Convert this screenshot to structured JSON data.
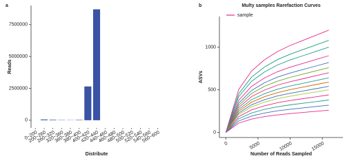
{
  "chart_data": [
    {
      "type": "bar",
      "panel_label": "a",
      "ylabel": "Reads",
      "xlabel": "Distribute",
      "categories": [
        "0~200",
        "200~260",
        "260~320",
        "320~360",
        "360~380",
        "380~400",
        "400~420",
        "420~440",
        "440~460",
        "460~480",
        "480~500",
        "500~520",
        "520~540",
        "540~560",
        "560~600"
      ],
      "values": [
        0,
        60000,
        40000,
        20000,
        15000,
        30000,
        2650000,
        8700000,
        0,
        0,
        0,
        0,
        0,
        0,
        0
      ],
      "color": "#3a53a4",
      "ylim": [
        -600000,
        9000000
      ],
      "yticks": [
        0,
        2500000,
        5000000,
        7500000
      ]
    },
    {
      "type": "line",
      "panel_label": "b",
      "title": "Multy samples Rarefaction Curves",
      "ylabel": "ASVs",
      "xlabel": "Number of Reads Sampled",
      "legend": {
        "label": "sample",
        "color": "#e7298a"
      },
      "x": [
        0,
        2000,
        4000,
        6000,
        8000,
        10000,
        12000,
        14000,
        16000
      ],
      "series": [
        {
          "color": "#e7298a",
          "values": [
            0,
            504,
            720,
            852,
            948,
            1020,
            1080,
            1140,
            1200
          ]
        },
        {
          "color": "#1b9e77",
          "values": [
            0,
            454,
            648,
            767,
            853,
            918,
            972,
            1026,
            1080
          ]
        },
        {
          "color": "#1f9e89",
          "values": [
            0,
            420,
            600,
            710,
            790,
            850,
            900,
            950,
            1000
          ]
        },
        {
          "color": "#e7298a",
          "values": [
            0,
            378,
            540,
            639,
            711,
            765,
            810,
            855,
            900
          ]
        },
        {
          "color": "#3b6fb6",
          "values": [
            0,
            344,
            492,
            582,
            648,
            697,
            738,
            779,
            820
          ]
        },
        {
          "color": "#66a61e",
          "values": [
            0,
            319,
            456,
            540,
            600,
            646,
            684,
            722,
            760
          ]
        },
        {
          "color": "#e7298a",
          "values": [
            0,
            294,
            420,
            497,
            553,
            595,
            630,
            665,
            700
          ]
        },
        {
          "color": "#1f9e89",
          "values": [
            0,
            269,
            384,
            454,
            506,
            544,
            576,
            608,
            640
          ]
        },
        {
          "color": "#d95f02",
          "values": [
            0,
            248,
            354,
            419,
            466,
            502,
            531,
            561,
            590
          ]
        },
        {
          "color": "#3b6fb6",
          "values": [
            0,
            227,
            324,
            383,
            427,
            459,
            486,
            513,
            540
          ]
        },
        {
          "color": "#a6c83a",
          "values": [
            0,
            210,
            300,
            355,
            395,
            425,
            450,
            475,
            500
          ]
        },
        {
          "color": "#e7298a",
          "values": [
            0,
            185,
            264,
            312,
            348,
            374,
            396,
            418,
            440
          ]
        },
        {
          "color": "#1f9e89",
          "values": [
            0,
            160,
            228,
            270,
            300,
            323,
            342,
            361,
            380
          ]
        },
        {
          "color": "#3b6fb6",
          "values": [
            0,
            134,
            192,
            227,
            253,
            272,
            288,
            304,
            320
          ]
        },
        {
          "color": "#e7298a",
          "values": [
            0,
            109,
            156,
            185,
            205,
            221,
            234,
            247,
            260
          ]
        }
      ],
      "xlim": [
        -1000,
        18200
      ],
      "xticks": [
        0,
        5000,
        10000,
        15000
      ],
      "ylim": [
        -60,
        1360
      ],
      "yticks": [
        0,
        500,
        1000
      ]
    }
  ]
}
